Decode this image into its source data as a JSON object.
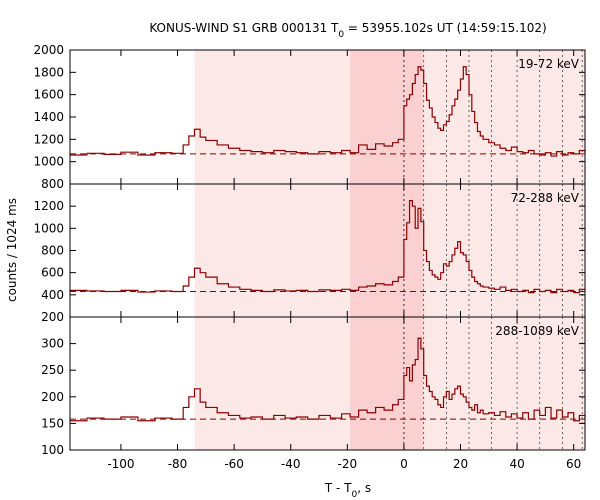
{
  "chart_data": {
    "type": "line",
    "title_main": "KONUS-WIND S1 GRB 000131 T",
    "title_sub": "0",
    "title_rest": " = 53955.102s UT (14:59:15.102)",
    "xlabel_main": "T - T",
    "xlabel_sub": "0",
    "xlabel_rest": ", s",
    "ylabel": "counts / 1024 ms",
    "xlim": [
      -118,
      64
    ],
    "xticks": [
      "-100",
      "-80",
      "-60",
      "-40",
      "-20",
      "0",
      "20",
      "40",
      "60"
    ],
    "xtick_values": [
      -100,
      -80,
      -60,
      -40,
      -20,
      0,
      20,
      40,
      60
    ],
    "shaded_regions": [
      {
        "from": -74,
        "to": 64,
        "level": "light"
      },
      {
        "from": -19,
        "to": 7,
        "level": "dark"
      }
    ],
    "vertical_markers": [
      0,
      7,
      15,
      23,
      31,
      40,
      48,
      56,
      63
    ],
    "colors": {
      "series": "#8b0000",
      "shade_light": "#fde8e8",
      "shade_dark": "#fad0d0"
    },
    "panels": [
      {
        "name": "19-72 keV",
        "ylim": [
          800,
          2000
        ],
        "yticks": [
          "800",
          "1000",
          "1200",
          "1400",
          "1600",
          "1800",
          "2000"
        ],
        "ytick_values": [
          800,
          1000,
          1200,
          1400,
          1600,
          1800,
          2000
        ],
        "background": 1070,
        "points": [
          [
            -118,
            1060
          ],
          [
            -112,
            1075
          ],
          [
            -106,
            1065
          ],
          [
            -100,
            1085
          ],
          [
            -94,
            1060
          ],
          [
            -88,
            1080
          ],
          [
            -82,
            1075
          ],
          [
            -78,
            1150
          ],
          [
            -76,
            1230
          ],
          [
            -74,
            1290
          ],
          [
            -72,
            1220
          ],
          [
            -70,
            1190
          ],
          [
            -66,
            1150
          ],
          [
            -62,
            1120
          ],
          [
            -58,
            1100
          ],
          [
            -54,
            1090
          ],
          [
            -50,
            1080
          ],
          [
            -46,
            1100
          ],
          [
            -42,
            1090
          ],
          [
            -38,
            1080
          ],
          [
            -34,
            1070
          ],
          [
            -30,
            1090
          ],
          [
            -26,
            1080
          ],
          [
            -22,
            1100
          ],
          [
            -19,
            1080
          ],
          [
            -16,
            1150
          ],
          [
            -13,
            1110
          ],
          [
            -10,
            1160
          ],
          [
            -7,
            1140
          ],
          [
            -4,
            1170
          ],
          [
            -2,
            1200
          ],
          [
            0,
            1500
          ],
          [
            1,
            1560
          ],
          [
            2,
            1600
          ],
          [
            3,
            1700
          ],
          [
            4,
            1780
          ],
          [
            5,
            1850
          ],
          [
            6,
            1820
          ],
          [
            7,
            1700
          ],
          [
            8,
            1550
          ],
          [
            9,
            1480
          ],
          [
            10,
            1400
          ],
          [
            11,
            1350
          ],
          [
            12,
            1300
          ],
          [
            13,
            1280
          ],
          [
            14,
            1330
          ],
          [
            15,
            1360
          ],
          [
            16,
            1420
          ],
          [
            17,
            1500
          ],
          [
            18,
            1560
          ],
          [
            19,
            1640
          ],
          [
            20,
            1740
          ],
          [
            21,
            1850
          ],
          [
            22,
            1780
          ],
          [
            23,
            1600
          ],
          [
            24,
            1450
          ],
          [
            25,
            1350
          ],
          [
            26,
            1270
          ],
          [
            27,
            1230
          ],
          [
            28,
            1200
          ],
          [
            30,
            1170
          ],
          [
            32,
            1150
          ],
          [
            34,
            1120
          ],
          [
            36,
            1100
          ],
          [
            38,
            1130
          ],
          [
            40,
            1090
          ],
          [
            42,
            1080
          ],
          [
            44,
            1100
          ],
          [
            46,
            1070
          ],
          [
            48,
            1060
          ],
          [
            50,
            1080
          ],
          [
            52,
            1050
          ],
          [
            54,
            1090
          ],
          [
            56,
            1060
          ],
          [
            58,
            1080
          ],
          [
            60,
            1070
          ],
          [
            62,
            1100
          ],
          [
            64,
            1080
          ]
        ]
      },
      {
        "name": "72-288 keV",
        "ylim": [
          200,
          1400
        ],
        "yticks": [
          "200",
          "400",
          "600",
          "800",
          "1000",
          "1200"
        ],
        "ytick_values": [
          200,
          400,
          600,
          800,
          1000,
          1200
        ],
        "background": 430,
        "points": [
          [
            -118,
            440
          ],
          [
            -112,
            435
          ],
          [
            -106,
            430
          ],
          [
            -100,
            440
          ],
          [
            -94,
            425
          ],
          [
            -88,
            435
          ],
          [
            -82,
            430
          ],
          [
            -78,
            480
          ],
          [
            -76,
            560
          ],
          [
            -74,
            640
          ],
          [
            -72,
            600
          ],
          [
            -70,
            560
          ],
          [
            -66,
            500
          ],
          [
            -62,
            470
          ],
          [
            -58,
            450
          ],
          [
            -54,
            440
          ],
          [
            -50,
            430
          ],
          [
            -46,
            445
          ],
          [
            -42,
            435
          ],
          [
            -38,
            440
          ],
          [
            -34,
            430
          ],
          [
            -30,
            445
          ],
          [
            -26,
            440
          ],
          [
            -22,
            450
          ],
          [
            -19,
            440
          ],
          [
            -16,
            470
          ],
          [
            -13,
            480
          ],
          [
            -10,
            500
          ],
          [
            -7,
            490
          ],
          [
            -4,
            520
          ],
          [
            -2,
            560
          ],
          [
            0,
            900
          ],
          [
            1,
            1050
          ],
          [
            2,
            1250
          ],
          [
            3,
            1200
          ],
          [
            4,
            1000
          ],
          [
            5,
            1180
          ],
          [
            6,
            1060
          ],
          [
            7,
            800
          ],
          [
            8,
            700
          ],
          [
            9,
            620
          ],
          [
            10,
            580
          ],
          [
            11,
            560
          ],
          [
            12,
            540
          ],
          [
            13,
            600
          ],
          [
            14,
            680
          ],
          [
            15,
            660
          ],
          [
            16,
            700
          ],
          [
            17,
            760
          ],
          [
            18,
            820
          ],
          [
            19,
            880
          ],
          [
            20,
            780
          ],
          [
            21,
            760
          ],
          [
            22,
            700
          ],
          [
            23,
            620
          ],
          [
            24,
            560
          ],
          [
            25,
            520
          ],
          [
            26,
            500
          ],
          [
            27,
            480
          ],
          [
            28,
            470
          ],
          [
            30,
            460
          ],
          [
            32,
            450
          ],
          [
            34,
            470
          ],
          [
            36,
            440
          ],
          [
            38,
            450
          ],
          [
            40,
            430
          ],
          [
            42,
            440
          ],
          [
            44,
            420
          ],
          [
            46,
            450
          ],
          [
            48,
            430
          ],
          [
            50,
            440
          ],
          [
            52,
            420
          ],
          [
            54,
            450
          ],
          [
            56,
            430
          ],
          [
            58,
            440
          ],
          [
            60,
            420
          ],
          [
            62,
            450
          ],
          [
            64,
            440
          ]
        ]
      },
      {
        "name": "288-1089 keV",
        "ylim": [
          100,
          350
        ],
        "yticks": [
          "100",
          "150",
          "200",
          "250",
          "300"
        ],
        "ytick_values": [
          100,
          150,
          200,
          250,
          300
        ],
        "background": 158,
        "points": [
          [
            -118,
            155
          ],
          [
            -112,
            160
          ],
          [
            -106,
            158
          ],
          [
            -100,
            162
          ],
          [
            -94,
            155
          ],
          [
            -88,
            160
          ],
          [
            -82,
            158
          ],
          [
            -78,
            180
          ],
          [
            -76,
            200
          ],
          [
            -74,
            215
          ],
          [
            -72,
            190
          ],
          [
            -70,
            180
          ],
          [
            -66,
            170
          ],
          [
            -62,
            165
          ],
          [
            -58,
            160
          ],
          [
            -54,
            162
          ],
          [
            -50,
            158
          ],
          [
            -46,
            165
          ],
          [
            -42,
            160
          ],
          [
            -38,
            162
          ],
          [
            -34,
            158
          ],
          [
            -30,
            165
          ],
          [
            -26,
            160
          ],
          [
            -22,
            168
          ],
          [
            -19,
            162
          ],
          [
            -16,
            175
          ],
          [
            -13,
            170
          ],
          [
            -10,
            180
          ],
          [
            -7,
            175
          ],
          [
            -4,
            185
          ],
          [
            -2,
            195
          ],
          [
            0,
            240
          ],
          [
            1,
            255
          ],
          [
            2,
            230
          ],
          [
            3,
            260
          ],
          [
            4,
            270
          ],
          [
            5,
            310
          ],
          [
            6,
            290
          ],
          [
            7,
            240
          ],
          [
            8,
            220
          ],
          [
            9,
            210
          ],
          [
            10,
            200
          ],
          [
            11,
            195
          ],
          [
            12,
            185
          ],
          [
            13,
            180
          ],
          [
            14,
            200
          ],
          [
            15,
            210
          ],
          [
            16,
            195
          ],
          [
            17,
            205
          ],
          [
            18,
            215
          ],
          [
            19,
            220
          ],
          [
            20,
            205
          ],
          [
            21,
            200
          ],
          [
            22,
            190
          ],
          [
            23,
            180
          ],
          [
            24,
            175
          ],
          [
            25,
            185
          ],
          [
            26,
            170
          ],
          [
            27,
            175
          ],
          [
            28,
            168
          ],
          [
            30,
            170
          ],
          [
            32,
            165
          ],
          [
            34,
            172
          ],
          [
            36,
            162
          ],
          [
            38,
            168
          ],
          [
            40,
            160
          ],
          [
            42,
            170
          ],
          [
            44,
            158
          ],
          [
            46,
            175
          ],
          [
            48,
            165
          ],
          [
            50,
            180
          ],
          [
            52,
            160
          ],
          [
            54,
            175
          ],
          [
            56,
            162
          ],
          [
            58,
            170
          ],
          [
            60,
            155
          ],
          [
            62,
            165
          ],
          [
            64,
            160
          ]
        ]
      }
    ]
  }
}
